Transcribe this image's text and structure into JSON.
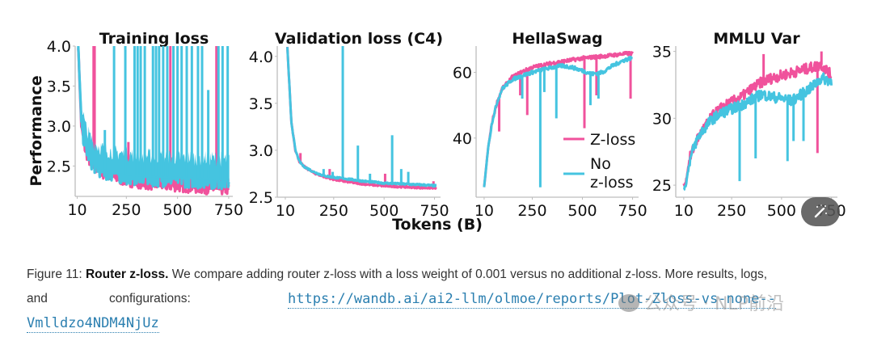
{
  "chart_data": [
    {
      "type": "line",
      "title": "Training loss",
      "xlabel": "",
      "ylabel": "Performance",
      "x_ticks": [
        10,
        250,
        500,
        750
      ],
      "y_ticks": [
        2.5,
        3.0,
        3.5,
        4.0
      ],
      "y_tick_labels": [
        "2.5",
        "3.0",
        "3.5",
        "4.0"
      ],
      "xlim": [
        0,
        770
      ],
      "ylim": [
        2.12,
        4.0
      ],
      "series": [
        {
          "name": "Z-loss",
          "color": "#f0529c",
          "x": [
            15,
            30,
            50,
            75,
            100,
            125,
            150,
            200,
            250,
            300,
            350,
            400,
            450,
            500,
            550,
            600,
            650,
            700,
            750
          ],
          "y": [
            4.0,
            3.0,
            2.7,
            2.55,
            2.48,
            2.44,
            2.4,
            2.36,
            2.33,
            2.31,
            2.29,
            2.28,
            2.27,
            2.26,
            2.25,
            2.24,
            2.23,
            2.22,
            2.22
          ],
          "spikes": [
            {
              "x": 90,
              "y": 4.0
            },
            {
              "x": 95,
              "y": 4.0
            },
            {
              "x": 260,
              "y": 2.8
            },
            {
              "x": 465,
              "y": 4.0
            },
            {
              "x": 690,
              "y": 4.0
            }
          ]
        },
        {
          "name": "No z-loss",
          "color": "#45c4e0",
          "x": [
            15,
            30,
            50,
            75,
            100,
            125,
            150,
            200,
            250,
            300,
            350,
            400,
            450,
            500,
            550,
            600,
            650,
            700,
            750
          ],
          "y": [
            4.0,
            3.05,
            2.75,
            2.6,
            2.52,
            2.48,
            2.45,
            2.42,
            2.4,
            2.39,
            2.38,
            2.37,
            2.37,
            2.36,
            2.36,
            2.35,
            2.35,
            2.34,
            2.33
          ],
          "spikes": [
            {
              "x": 145,
              "y": 2.95
            },
            {
              "x": 190,
              "y": 4.0
            },
            {
              "x": 245,
              "y": 4.0
            },
            {
              "x": 290,
              "y": 4.0
            },
            {
              "x": 305,
              "y": 4.0
            },
            {
              "x": 320,
              "y": 4.0
            },
            {
              "x": 340,
              "y": 4.0
            },
            {
              "x": 380,
              "y": 4.0
            },
            {
              "x": 395,
              "y": 4.0
            },
            {
              "x": 410,
              "y": 4.0
            },
            {
              "x": 430,
              "y": 4.0
            },
            {
              "x": 450,
              "y": 4.0
            },
            {
              "x": 480,
              "y": 4.0
            },
            {
              "x": 500,
              "y": 4.0
            },
            {
              "x": 520,
              "y": 4.0
            },
            {
              "x": 545,
              "y": 4.0
            },
            {
              "x": 570,
              "y": 4.0
            },
            {
              "x": 600,
              "y": 4.0
            },
            {
              "x": 620,
              "y": 4.0
            },
            {
              "x": 650,
              "y": 3.45
            },
            {
              "x": 700,
              "y": 4.0
            },
            {
              "x": 720,
              "y": 4.0
            },
            {
              "x": 745,
              "y": 4.0
            }
          ]
        }
      ]
    },
    {
      "type": "line",
      "title": "Validation loss (C4)",
      "xlabel": "",
      "ylabel": "",
      "x_ticks": [
        10,
        250,
        500,
        750
      ],
      "y_ticks": [
        2.5,
        3.0,
        3.5,
        4.0
      ],
      "y_tick_labels": [
        "2.5",
        "3.0",
        "3.5",
        "4.0"
      ],
      "xlim": [
        -30,
        780
      ],
      "ylim": [
        2.5,
        4.11
      ],
      "series": [
        {
          "name": "Z-loss",
          "color": "#f0529c",
          "x": [
            20,
            40,
            60,
            80,
            100,
            150,
            200,
            250,
            300,
            400,
            500,
            600,
            700,
            760
          ],
          "y": [
            4.1,
            3.3,
            3.0,
            2.88,
            2.83,
            2.76,
            2.72,
            2.69,
            2.67,
            2.64,
            2.62,
            2.61,
            2.6,
            2.6
          ],
          "spikes": [
            {
              "x": 85,
              "y": 2.97
            },
            {
              "x": 185,
              "y": 2.74
            },
            {
              "x": 230,
              "y": 2.8
            },
            {
              "x": 505,
              "y": 2.75
            },
            {
              "x": 745,
              "y": 2.67
            }
          ]
        },
        {
          "name": "No z-loss",
          "color": "#45c4e0",
          "x": [
            20,
            40,
            60,
            80,
            100,
            150,
            200,
            250,
            300,
            400,
            500,
            600,
            700,
            760
          ],
          "y": [
            4.1,
            3.3,
            3.0,
            2.88,
            2.83,
            2.77,
            2.73,
            2.71,
            2.7,
            2.67,
            2.65,
            2.64,
            2.63,
            2.62
          ],
          "spikes": [
            {
              "x": 75,
              "y": 2.92
            },
            {
              "x": 200,
              "y": 2.8
            },
            {
              "x": 245,
              "y": 2.77
            },
            {
              "x": 295,
              "y": 4.11
            },
            {
              "x": 370,
              "y": 3.05
            },
            {
              "x": 430,
              "y": 2.75
            },
            {
              "x": 540,
              "y": 3.16
            },
            {
              "x": 585,
              "y": 2.8
            },
            {
              "x": 620,
              "y": 2.77
            }
          ]
        }
      ]
    },
    {
      "type": "line",
      "title": "HellaSwag",
      "xlabel": "Tokens (B)",
      "ylabel": "",
      "x_ticks": [
        10,
        250,
        500,
        750
      ],
      "y_ticks": [
        40,
        60
      ],
      "y_tick_labels": [
        "40",
        "60"
      ],
      "xlim": [
        -30,
        780
      ],
      "ylim": [
        22,
        68
      ],
      "legend": {
        "position": "lower-right",
        "entries": [
          "Z-loss",
          "No\nz-loss"
        ]
      },
      "series": [
        {
          "name": "Z-loss",
          "color": "#f0529c",
          "x": [
            10,
            30,
            50,
            75,
            100,
            150,
            200,
            250,
            300,
            350,
            400,
            450,
            500,
            550,
            600,
            650,
            700,
            750
          ],
          "y": [
            25,
            37,
            45,
            51,
            55,
            58.5,
            60.2,
            61.5,
            62.2,
            62.8,
            63.3,
            63.8,
            64.3,
            64.6,
            64.9,
            65.2,
            65.6,
            65.8
          ],
          "spikes": [
            {
              "x": 85,
              "y": 42
            },
            {
              "x": 190,
              "y": 53
            },
            {
              "x": 225,
              "y": 47
            },
            {
              "x": 510,
              "y": 43
            },
            {
              "x": 570,
              "y": 53
            },
            {
              "x": 740,
              "y": 52
            }
          ]
        },
        {
          "name": "No z-loss",
          "color": "#45c4e0",
          "x": [
            10,
            30,
            50,
            75,
            100,
            150,
            200,
            250,
            300,
            350,
            400,
            450,
            500,
            550,
            600,
            650,
            700,
            750
          ],
          "y": [
            25,
            37,
            45,
            51,
            55,
            57.8,
            59,
            60,
            60.8,
            61.5,
            62,
            61.5,
            60.5,
            59.5,
            60,
            62,
            63.5,
            64.5
          ],
          "spikes": [
            {
              "x": 200,
              "y": 52
            },
            {
              "x": 290,
              "y": 25
            },
            {
              "x": 310,
              "y": 54
            },
            {
              "x": 370,
              "y": 46
            },
            {
              "x": 540,
              "y": 50
            },
            {
              "x": 580,
              "y": 52
            }
          ]
        }
      ]
    },
    {
      "type": "line",
      "title": "MMLU Var",
      "xlabel": "",
      "ylabel": "",
      "x_ticks": [
        10,
        250,
        500,
        750
      ],
      "y_ticks": [
        25,
        30,
        35
      ],
      "y_tick_labels": [
        "25",
        "30",
        "35"
      ],
      "xlim": [
        -30,
        780
      ],
      "ylim": [
        24.1,
        35.4
      ],
      "series": [
        {
          "name": "Z-loss",
          "color": "#f0529c",
          "x": [
            10,
            20,
            40,
            60,
            80,
            100,
            150,
            200,
            250,
            300,
            350,
            400,
            450,
            500,
            550,
            600,
            650,
            700,
            750
          ],
          "y": [
            25,
            25.2,
            27,
            27.8,
            28.5,
            29,
            30.1,
            30.8,
            31.2,
            31.6,
            32.2,
            32.7,
            33,
            33.2,
            33.4,
            33.6,
            33.8,
            34,
            33.2
          ],
          "spikes": [
            {
              "x": 410,
              "y": 34.8
            },
            {
              "x": 680,
              "y": 27.4
            },
            {
              "x": 700,
              "y": 35
            }
          ]
        },
        {
          "name": "No z-loss",
          "color": "#45c4e0",
          "x": [
            10,
            20,
            40,
            60,
            80,
            100,
            150,
            200,
            250,
            300,
            350,
            400,
            450,
            500,
            550,
            600,
            650,
            700,
            750
          ],
          "y": [
            24.7,
            25,
            26.8,
            27.8,
            28.5,
            29,
            29.9,
            30.4,
            30.7,
            31,
            31.4,
            31.8,
            31.6,
            31.5,
            31.3,
            31.8,
            32.3,
            33,
            32.8
          ],
          "spikes": [
            {
              "x": 290,
              "y": 25.3
            },
            {
              "x": 370,
              "y": 27
            },
            {
              "x": 530,
              "y": 26.8
            },
            {
              "x": 560,
              "y": 28.3
            },
            {
              "x": 610,
              "y": 28.3
            }
          ]
        }
      ]
    }
  ],
  "figure": {
    "shared_xlabel": "Tokens (B)",
    "shared_ylabel": "Performance"
  },
  "caption": {
    "prefix": "Figure 11: ",
    "bold": "Router z-loss.",
    "text": " We compare adding router z-loss with a loss weight of 0.001 versus no additional z-loss. More results, logs,",
    "line2_a": "and",
    "line2_b": "configurations:",
    "link_part1": "https://wandb.ai/ai2-llm/olmoe/reports/Plot-Zloss-vs-none--",
    "link_part2": "Vmlldzo4NDM4NjUz"
  },
  "watermark": {
    "text": "公众号 · NLP前沿"
  },
  "overlay": {
    "icon": "magic-wand-icon"
  }
}
